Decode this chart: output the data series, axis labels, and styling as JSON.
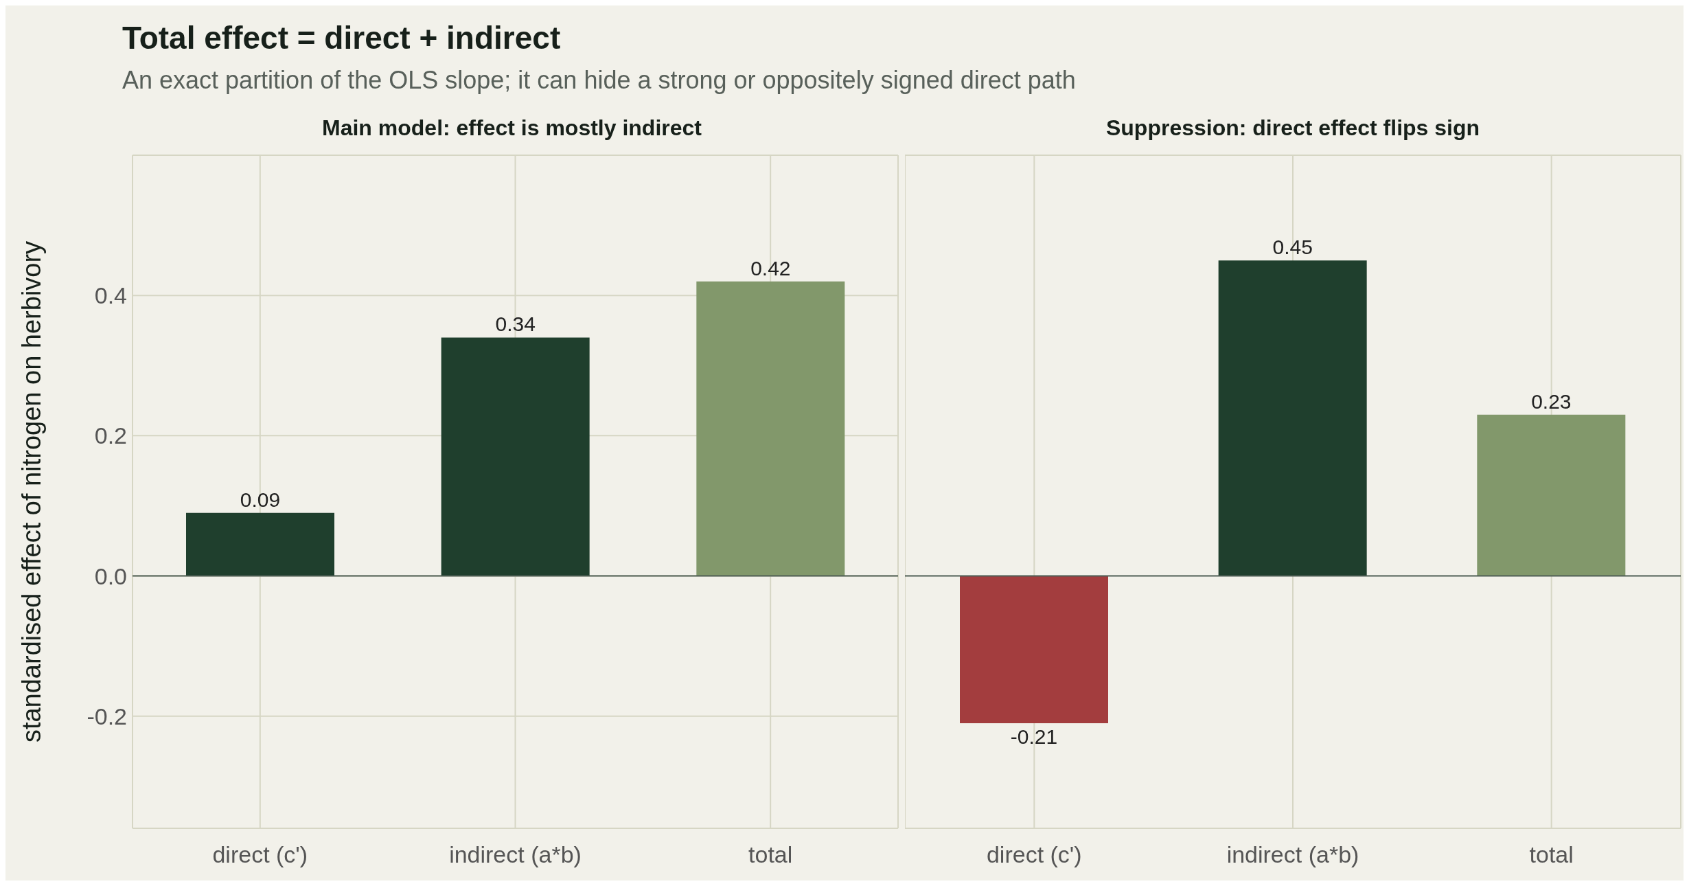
{
  "chart_data": [
    {
      "type": "bar",
      "title": "Total effect = direct + indirect",
      "subtitle": "An exact partition of the OLS slope; it can hide a strong or oppositely signed direct path",
      "annotations": [
        "Main model: effect is mostly indirect"
      ],
      "ylabel": "standardised effect of nitrogen on herbivory",
      "categories": [
        "direct (c')",
        "indirect (a*b)",
        "total"
      ],
      "values": [
        0.09,
        0.34,
        0.42
      ],
      "colors": [
        "#1f3f2d",
        "#1f3f2d",
        "#82986b"
      ],
      "ylim": [
        -0.36,
        0.6
      ],
      "yticks": [
        -0.2,
        {
          "value": 0,
          "label": "0.0"
        },
        0.2,
        0.4
      ],
      "grid": true,
      "data_labels": true,
      "ref_lines": [
        {
          "axis": "y",
          "value": 0,
          "color": "#4f5f55"
        }
      ]
    },
    {
      "type": "bar",
      "title": "Suppression: direct effect flips sign",
      "categories": [
        "direct (c')",
        "indirect (a*b)",
        "total"
      ],
      "values": [
        -0.21,
        0.45,
        0.23
      ],
      "colors": [
        "#a33d3e",
        "#1f3f2d",
        "#82986b"
      ],
      "ylim": [
        -0.36,
        0.6
      ],
      "yticks": [
        -0.2,
        0,
        0.2,
        0.4
      ],
      "tick_labels": "x",
      "grid": true,
      "data_labels": true,
      "ref_lines": [
        {
          "axis": "y",
          "value": 0,
          "color": "#4f5f55"
        }
      ]
    }
  ]
}
